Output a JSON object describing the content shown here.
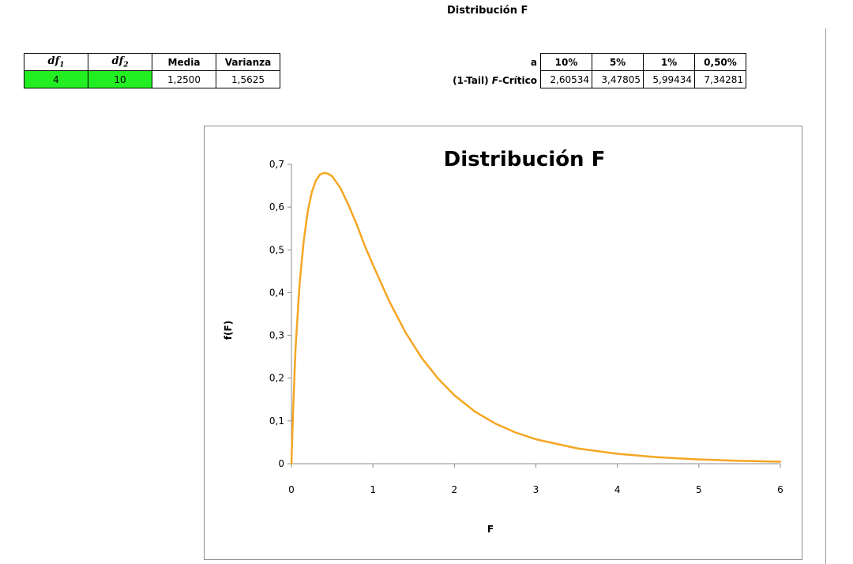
{
  "sheet_title": "Distribución F",
  "params": {
    "headers": [
      "df",
      "df",
      "Media",
      "Varianza"
    ],
    "df1_label": "df",
    "df1_sub": "1",
    "df2_label": "df",
    "df2_sub": "2",
    "media_label": "Media",
    "varianza_label": "Varianza",
    "df1": "4",
    "df2": "10",
    "media": "1,2500",
    "varianza": "1,5625",
    "input_color": "#22ee22"
  },
  "critical": {
    "alpha_label": "a",
    "fcrit_label_pre": "(1-Tail) ",
    "fcrit_label_italic": "F",
    "fcrit_label_post": "-Crítico",
    "alphas": [
      "10%",
      "5%",
      "1%",
      "0,50%"
    ],
    "values": [
      "2,60534",
      "3,47805",
      "5,99434",
      "7,34281"
    ]
  },
  "chart_data": {
    "type": "line",
    "title": "Distribución F",
    "xlabel": "F",
    "ylabel": "f(F)",
    "xlim": [
      0,
      6
    ],
    "ylim": [
      0,
      0.7
    ],
    "x_ticks": [
      "0",
      "1",
      "2",
      "3",
      "4",
      "5",
      "6"
    ],
    "y_ticks": [
      "0",
      "0,1",
      "0,2",
      "0,3",
      "0,4",
      "0,5",
      "0,6",
      "0,7"
    ],
    "grid": false,
    "legend": "none",
    "line_color": "#f5a623",
    "series": [
      {
        "x": [
          0,
          0.02,
          0.05,
          0.1,
          0.15,
          0.2,
          0.25,
          0.3,
          0.35,
          0.4,
          0.45,
          0.5,
          0.6,
          0.7,
          0.8,
          0.9,
          1.0,
          1.2,
          1.4,
          1.6,
          1.8,
          2.0,
          2.25,
          2.5,
          2.75,
          3.0,
          3.5,
          4.0,
          4.5,
          5.0,
          5.5,
          6.0
        ],
        "y": [
          0,
          0.125,
          0.27,
          0.42,
          0.52,
          0.59,
          0.635,
          0.662,
          0.676,
          0.68,
          0.678,
          0.672,
          0.645,
          0.605,
          0.56,
          0.51,
          0.465,
          0.38,
          0.307,
          0.247,
          0.199,
          0.16,
          0.122,
          0.094,
          0.073,
          0.057,
          0.036,
          0.023,
          0.015,
          0.0099,
          0.0067,
          0.0046
        ]
      }
    ]
  }
}
